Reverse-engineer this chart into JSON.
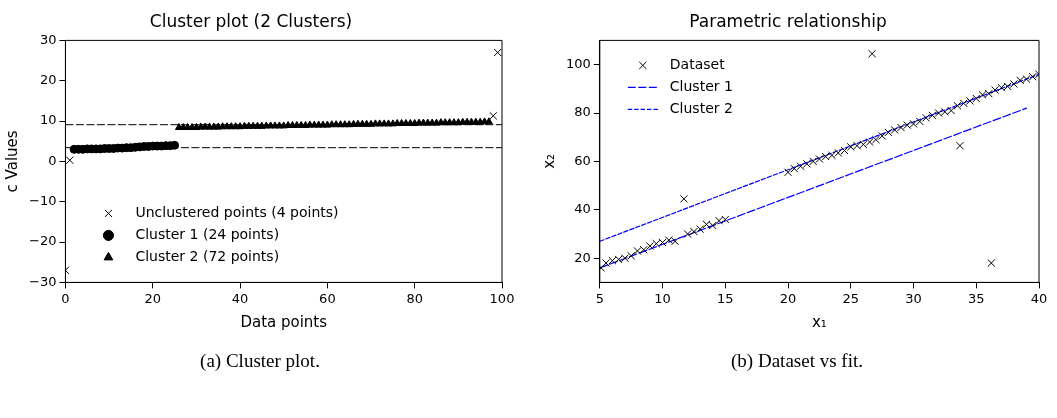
{
  "chart_data": [
    {
      "type": "scatter",
      "title": "Cluster plot (2 Clusters)",
      "xlabel": "Data points",
      "ylabel": "c Values",
      "xlim": [
        0,
        100
      ],
      "xticks": [
        0,
        20,
        40,
        60,
        80,
        100
      ],
      "ylim": [
        -30,
        30
      ],
      "yticks": [
        {
          "value": -30,
          "label": "−30"
        },
        {
          "value": -20,
          "label": "−20"
        },
        {
          "value": -10,
          "label": "−10"
        },
        0,
        10,
        20,
        30
      ],
      "grid": false,
      "legend": "bottom left",
      "annotations": [
        "(a) Cluster plot."
      ],
      "ref_lines": [
        {
          "axis": "y",
          "value": 9.1,
          "color": "#000000",
          "line_style": "dashed"
        },
        {
          "axis": "y",
          "value": 3.4,
          "color": "#000000",
          "line_style": "dashed"
        }
      ],
      "series": [
        {
          "name": "Unclustered points (4 points)",
          "type": "scatter",
          "marker": "cross",
          "color": "#000000",
          "x": [
            0,
            1,
            98,
            99
          ],
          "values": [
            -27,
            0.3,
            11.3,
            27
          ]
        },
        {
          "name": "Cluster 1 (24 points)",
          "type": "scatter",
          "marker": "circle",
          "color": "#000000",
          "x": [
            2,
            3,
            4,
            5,
            6,
            7,
            8,
            9,
            10,
            11,
            12,
            13,
            14,
            15,
            16,
            17,
            18,
            19,
            20,
            21,
            22,
            23,
            24,
            25
          ],
          "values": [
            3.0,
            3.0,
            3.0,
            3.1,
            3.1,
            3.1,
            3.1,
            3.2,
            3.2,
            3.2,
            3.3,
            3.3,
            3.4,
            3.4,
            3.5,
            3.6,
            3.7,
            3.7,
            3.8,
            3.8,
            3.8,
            3.9,
            3.9,
            4.0
          ]
        },
        {
          "name": "Cluster 2 (72 points)",
          "type": "scatter",
          "marker": "triangle",
          "color": "#000000",
          "x": [
            26,
            27,
            28,
            29,
            30,
            31,
            32,
            33,
            34,
            35,
            36,
            37,
            38,
            39,
            40,
            41,
            42,
            43,
            44,
            45,
            46,
            47,
            48,
            49,
            50,
            51,
            52,
            53,
            54,
            55,
            56,
            57,
            58,
            59,
            60,
            61,
            62,
            63,
            64,
            65,
            66,
            67,
            68,
            69,
            70,
            71,
            72,
            73,
            74,
            75,
            76,
            77,
            78,
            79,
            80,
            81,
            82,
            83,
            84,
            85,
            86,
            87,
            88,
            89,
            90,
            91,
            92,
            93,
            94,
            95,
            96,
            97
          ],
          "values": [
            8.4,
            8.4,
            8.4,
            8.4,
            8.4,
            8.5,
            8.5,
            8.5,
            8.5,
            8.5,
            8.6,
            8.6,
            8.6,
            8.6,
            8.6,
            8.7,
            8.7,
            8.7,
            8.7,
            8.7,
            8.8,
            8.8,
            8.8,
            8.8,
            8.8,
            8.9,
            8.9,
            8.9,
            8.9,
            8.9,
            9.0,
            9.0,
            9.0,
            9.0,
            9.0,
            9.1,
            9.1,
            9.1,
            9.1,
            9.1,
            9.2,
            9.2,
            9.2,
            9.2,
            9.2,
            9.3,
            9.3,
            9.3,
            9.3,
            9.3,
            9.4,
            9.4,
            9.4,
            9.4,
            9.4,
            9.5,
            9.5,
            9.5,
            9.5,
            9.5,
            9.6,
            9.6,
            9.6,
            9.6,
            9.6,
            9.7,
            9.7,
            9.7,
            9.7,
            9.7,
            9.8,
            9.8
          ]
        }
      ]
    },
    {
      "type": "scatter",
      "title": "Parametric relationship",
      "xlabel": "x₁",
      "ylabel": "x₂",
      "xlim": [
        5,
        40
      ],
      "xticks": [
        5,
        10,
        15,
        20,
        25,
        30,
        35,
        40
      ],
      "ylim": [
        10,
        110
      ],
      "yticks": [
        20,
        40,
        60,
        80,
        100
      ],
      "grid": false,
      "legend": "top left",
      "annotations": [
        "(b) Dataset vs fit."
      ],
      "series": [
        {
          "name": "Dataset",
          "type": "scatter",
          "marker": "cross",
          "color": "#000000",
          "x": [
            5.1,
            5.5,
            6,
            6.5,
            7,
            7.5,
            8,
            8.5,
            9,
            9.5,
            10,
            10.5,
            11,
            11.7,
            12,
            12.5,
            13,
            13.5,
            14,
            14.5,
            15,
            20,
            20.5,
            21,
            21.5,
            22,
            22.5,
            23,
            23.5,
            24,
            24.5,
            25,
            25.5,
            26,
            26.5,
            26.7,
            27,
            27.5,
            28,
            28.5,
            29,
            29.5,
            30,
            30.5,
            31,
            31.5,
            32,
            32.5,
            33,
            33.5,
            33.7,
            34,
            34.5,
            35,
            35.5,
            36,
            36.2,
            36.5,
            37,
            37.5,
            38,
            38.5,
            39,
            39.5,
            40
          ],
          "values": [
            16,
            18,
            19,
            19.5,
            20,
            21,
            23,
            23.5,
            25,
            26,
            26.5,
            27.5,
            27,
            44.5,
            30,
            31,
            32,
            34,
            33.5,
            35.5,
            36,
            55.5,
            57,
            58,
            59,
            60,
            61,
            62,
            62.5,
            63.5,
            64.5,
            66,
            66.5,
            67,
            68,
            104.5,
            69,
            70.5,
            72,
            73,
            74,
            75,
            75.5,
            76.5,
            78,
            79,
            80,
            80.5,
            81,
            83,
            66.5,
            84,
            85,
            86,
            87.5,
            88,
            18,
            89.5,
            90.5,
            91,
            92,
            93.5,
            94,
            95,
            96
          ]
        },
        {
          "name": "Cluster 1",
          "type": "line",
          "line_style": "dashed",
          "marker": "none",
          "color": "#0000ff",
          "x": [
            5,
            39
          ],
          "values": [
            16,
            82
          ]
        },
        {
          "name": "Cluster 2",
          "type": "line",
          "line_style": "dashed",
          "marker": "none",
          "color": "#0000ff",
          "x": [
            5,
            40
          ],
          "values": [
            27,
            96
          ]
        }
      ]
    }
  ]
}
